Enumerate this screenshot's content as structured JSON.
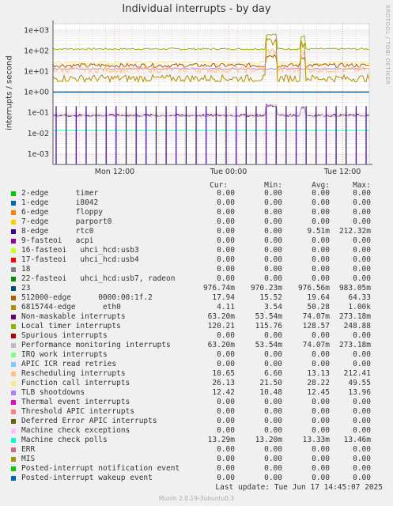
{
  "chart_data": {
    "type": "line",
    "title": "Individual interrupts - by day",
    "ylabel": "interrupts / second",
    "yscale": "log",
    "ylim": [
      0.0003,
      2000
    ],
    "yticks": [
      "1e-03",
      "1e-02",
      "1e-01",
      "1e+00",
      "1e+01",
      "1e+02",
      "1e+03"
    ],
    "xticks": [
      "Mon 12:00",
      "Tue 00:00",
      "Tue 12:00"
    ],
    "grid": true,
    "legend_position": "bottom",
    "columns": [
      "Cur:",
      "Min:",
      "Avg:",
      "Max:"
    ],
    "series": [
      {
        "name": "2-edge      timer",
        "color": "#00cc00",
        "cur": "0.00",
        "min": "0.00",
        "avg": "0.00",
        "max": "0.00"
      },
      {
        "name": "1-edge      i8042",
        "color": "#0066b3",
        "cur": "0.00",
        "min": "0.00",
        "avg": "0.00",
        "max": "0.00"
      },
      {
        "name": "6-edge      floppy",
        "color": "#ff8000",
        "cur": "0.00",
        "min": "0.00",
        "avg": "0.00",
        "max": "0.00"
      },
      {
        "name": "7-edge      parport0",
        "color": "#ffcc00",
        "cur": "0.00",
        "min": "0.00",
        "avg": "0.00",
        "max": "0.00"
      },
      {
        "name": "8-edge      rtc0",
        "color": "#330099",
        "cur": "0.00",
        "min": "0.00",
        "avg": "9.51m",
        "max": "212.32m"
      },
      {
        "name": "9-fasteoi   acpi",
        "color": "#990099",
        "cur": "0.00",
        "min": "0.00",
        "avg": "0.00",
        "max": "0.00"
      },
      {
        "name": "16-fasteoi   uhci_hcd:usb3",
        "color": "#ccff00",
        "cur": "0.00",
        "min": "0.00",
        "avg": "0.00",
        "max": "0.00"
      },
      {
        "name": "17-fasteoi   uhci_hcd:usb4",
        "color": "#ff0000",
        "cur": "0.00",
        "min": "0.00",
        "avg": "0.00",
        "max": "0.00"
      },
      {
        "name": "18",
        "color": "#808080",
        "cur": "0.00",
        "min": "0.00",
        "avg": "0.00",
        "max": "0.00"
      },
      {
        "name": "22-fasteoi   uhci_hcd:usb7, radeon",
        "color": "#008f00",
        "cur": "0.00",
        "min": "0.00",
        "avg": "0.00",
        "max": "0.00"
      },
      {
        "name": "23",
        "color": "#00487d",
        "cur": "976.74m",
        "min": "970.23m",
        "avg": "976.56m",
        "max": "983.05m"
      },
      {
        "name": "512000-edge      0000:00:1f.2",
        "color": "#b35a00",
        "cur": "17.94",
        "min": "15.52",
        "avg": "19.64",
        "max": "64.33"
      },
      {
        "name": "6815744-edge      eth0",
        "color": "#b38f00",
        "cur": "4.11",
        "min": "3.54",
        "avg": "50.28",
        "max": "1.00k"
      },
      {
        "name": "Non-maskable interrupts",
        "color": "#6b006b",
        "cur": "63.20m",
        "min": "53.54m",
        "avg": "74.07m",
        "max": "273.18m"
      },
      {
        "name": "Local timer interrupts",
        "color": "#8fb300",
        "cur": "120.21",
        "min": "115.76",
        "avg": "128.57",
        "max": "248.88"
      },
      {
        "name": "Spurious interrupts",
        "color": "#b30000",
        "cur": "0.00",
        "min": "0.00",
        "avg": "0.00",
        "max": "0.00"
      },
      {
        "name": "Performance monitoring interrupts",
        "color": "#bebebe",
        "cur": "63.20m",
        "min": "53.54m",
        "avg": "74.07m",
        "max": "273.18m"
      },
      {
        "name": "IRQ work interrupts",
        "color": "#80ff80",
        "cur": "0.00",
        "min": "0.00",
        "avg": "0.00",
        "max": "0.00"
      },
      {
        "name": "APIC ICR read retries",
        "color": "#80c9ff",
        "cur": "0.00",
        "min": "0.00",
        "avg": "0.00",
        "max": "0.00"
      },
      {
        "name": "Rescheduling interrupts",
        "color": "#ffc080",
        "cur": "10.65",
        "min": "6.60",
        "avg": "13.13",
        "max": "212.41"
      },
      {
        "name": "Function call interrupts",
        "color": "#ffe680",
        "cur": "26.13",
        "min": "21.50",
        "avg": "28.22",
        "max": "49.55"
      },
      {
        "name": "TLB shootdowns",
        "color": "#aa80ff",
        "cur": "12.42",
        "min": "10.48",
        "avg": "12.45",
        "max": "13.96"
      },
      {
        "name": "Thermal event interrupts",
        "color": "#ee00cc",
        "cur": "0.00",
        "min": "0.00",
        "avg": "0.00",
        "max": "0.00"
      },
      {
        "name": "Threshold APIC interrupts",
        "color": "#ff8080",
        "cur": "0.00",
        "min": "0.00",
        "avg": "0.00",
        "max": "0.00"
      },
      {
        "name": "Deferred Error APIC interrupts",
        "color": "#666600",
        "cur": "0.00",
        "min": "0.00",
        "avg": "0.00",
        "max": "0.00"
      },
      {
        "name": "Machine check exceptions",
        "color": "#ffbfff",
        "cur": "0.00",
        "min": "0.00",
        "avg": "0.00",
        "max": "0.00"
      },
      {
        "name": "Machine check polls",
        "color": "#00ffcc",
        "cur": "13.29m",
        "min": "13.20m",
        "avg": "13.33m",
        "max": "13.46m"
      },
      {
        "name": "ERR",
        "color": "#cc6699",
        "cur": "0.00",
        "min": "0.00",
        "avg": "0.00",
        "max": "0.00"
      },
      {
        "name": "MIS",
        "color": "#999900",
        "cur": "0.00",
        "min": "0.00",
        "avg": "0.00",
        "max": "0.00"
      },
      {
        "name": "Posted-interrupt notification event",
        "color": "#00cc00",
        "cur": "0.00",
        "min": "0.00",
        "avg": "0.00",
        "max": "0.00"
      },
      {
        "name": "Posted-interrupt wakeup event",
        "color": "#0066b3",
        "cur": "0.00",
        "min": "0.00",
        "avg": "0.00",
        "max": "0.00"
      }
    ]
  },
  "side_label": "RRDTOOL / TOBI OETIKER",
  "last_update": "Last update:  Tue Jun 17 14:45:07 2025",
  "footer": "Munin 2.0.19-3ubuntu0.3"
}
